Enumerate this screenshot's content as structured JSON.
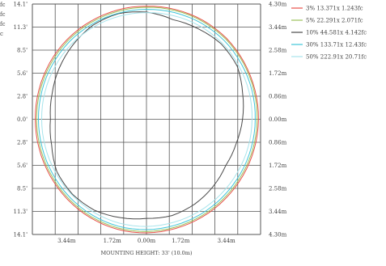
{
  "chart_data": {
    "type": "line",
    "title": "",
    "xlabel": "MOUNTING HEIGHT: 33' (10.0m)",
    "left_tick_labels": [
      "14.1'",
      "11.3'",
      "8.5'",
      "5.6'",
      "2.8'",
      "0.0'",
      "2.8'",
      "5.6'",
      "8.5'",
      "11.3'",
      "14.1'"
    ],
    "right_tick_labels": [
      "4.30m",
      "3.44m",
      "2.58m",
      "1.72m",
      "0.86m",
      "0.00m",
      "0.86m",
      "1.72m",
      "2.58m",
      "3.44m",
      "4.30m"
    ],
    "bottom_tick_labels": [
      "3.44m",
      "1.72m",
      "0.00m",
      "1.72m",
      "3.44m"
    ],
    "partial_top_left_labels": [
      "fc",
      "fc",
      "fc",
      "c"
    ],
    "xlim": [
      -4.3,
      4.3
    ],
    "ylim": [
      -4.3,
      4.3
    ],
    "grid": true,
    "legend_position": "right",
    "series": [
      {
        "name": "3% 13.371x 1.243fc",
        "color": "#e8504a",
        "radii": [
          4.22,
          4.24,
          4.26,
          4.27,
          4.25,
          4.23,
          4.22,
          4.21,
          4.2,
          4.2,
          4.21,
          4.22,
          4.24,
          4.25,
          4.24,
          4.22,
          4.2,
          4.19,
          4.19,
          4.2,
          4.21,
          4.22,
          4.22,
          4.22
        ]
      },
      {
        "name": "5% 22.291x 2.071fc",
        "color": "#9bc25a",
        "radii": [
          4.18,
          4.2,
          4.22,
          4.23,
          4.21,
          4.19,
          4.17,
          4.16,
          4.15,
          4.15,
          4.16,
          4.17,
          4.19,
          4.2,
          4.19,
          4.17,
          4.15,
          4.14,
          4.14,
          4.15,
          4.16,
          4.17,
          4.17,
          4.17
        ]
      },
      {
        "name": "10% 44.581x 4.142fc",
        "color": "#4a4a4a",
        "radii": [
          4.0,
          3.85,
          3.9,
          3.98,
          3.95,
          3.75,
          3.62,
          3.5,
          3.45,
          3.55,
          3.65,
          3.72,
          3.7,
          3.8,
          3.92,
          3.95,
          3.9,
          3.7,
          3.62,
          3.68,
          3.8,
          3.92,
          4.05,
          4.08
        ]
      },
      {
        "name": "30% 133.71x 12.43fc",
        "color": "#3fc6d8",
        "radii": [
          4.1,
          4.12,
          4.14,
          4.15,
          4.13,
          4.12,
          4.1,
          4.09,
          4.08,
          4.08,
          4.09,
          4.1,
          4.12,
          4.13,
          4.12,
          4.1,
          4.08,
          4.07,
          4.07,
          4.08,
          4.09,
          4.1,
          4.1,
          4.1
        ]
      },
      {
        "name": "50% 222.91x 20.71fc",
        "color": "#a8e4ec",
        "radii": [
          3.98,
          4.0,
          4.02,
          4.03,
          4.01,
          4.0,
          3.98,
          3.97,
          3.96,
          3.96,
          3.97,
          3.98,
          4.0,
          4.01,
          4.0,
          3.98,
          3.96,
          3.95,
          3.95,
          3.96,
          3.97,
          3.98,
          3.98,
          3.98
        ]
      }
    ]
  }
}
